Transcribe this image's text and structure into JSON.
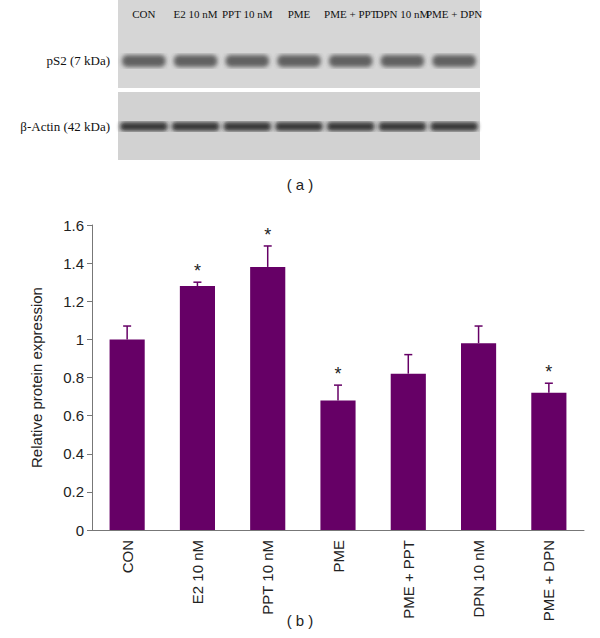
{
  "blot": {
    "label": "( a )",
    "lanes": [
      "CON",
      "E2 10 nM",
      "PPT 10 nM",
      "PME",
      "PME + PPT",
      "DPN 10 nM",
      "PME + DPN"
    ],
    "rows": [
      "pS2 (7 kDa)",
      "β-Actin (42 kDa)"
    ]
  },
  "chart_label": "( b )",
  "chart_data": {
    "type": "bar",
    "y_label": "Relative protein expression",
    "categories": [
      "CON",
      "E2 10 nM",
      "PPT 10 nM",
      "PME",
      "PME + PPT",
      "DPN 10 nM",
      "PME + DPN"
    ],
    "values": [
      1.0,
      1.28,
      1.38,
      0.68,
      0.82,
      0.98,
      0.72
    ],
    "errors": [
      0.07,
      0.02,
      0.11,
      0.08,
      0.1,
      0.09,
      0.05
    ],
    "significance": [
      null,
      "*",
      "*",
      "*",
      null,
      null,
      "*"
    ],
    "color": "#660066",
    "ylim": [
      0,
      1.6
    ],
    "yticks": [
      0,
      0.2,
      0.4,
      0.6,
      0.8,
      1,
      1.2,
      1.4,
      1.6
    ],
    "grid": false
  }
}
